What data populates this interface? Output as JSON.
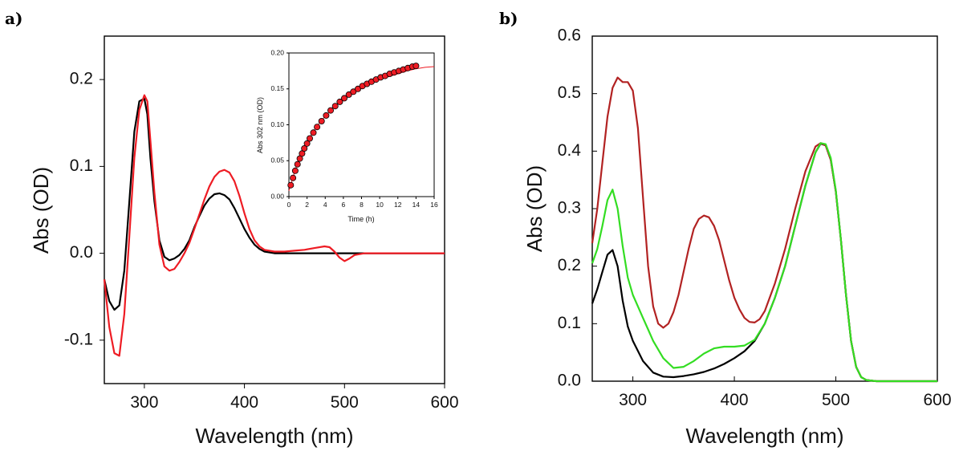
{
  "panels": {
    "a": {
      "label": "a)"
    },
    "b": {
      "label": "b)"
    }
  },
  "colors": {
    "black": "#000000",
    "red": "#ee1c24",
    "darkred": "#b22222",
    "green": "#33dd22"
  },
  "chart_data": [
    {
      "id": "a",
      "type": "line",
      "xlabel": "Wavelength (nm)",
      "ylabel": "Abs (OD)",
      "xlim": [
        260,
        600
      ],
      "ylim": [
        -0.15,
        0.25
      ],
      "xticks": [
        300,
        400,
        500,
        600
      ],
      "yticks": [
        -0.1,
        0.0,
        0.1,
        0.2
      ],
      "xtick_labels": [
        "300",
        "400",
        "500",
        "600"
      ],
      "ytick_labels": [
        "-0.1",
        "0.0",
        "0.1",
        "0.2"
      ],
      "grid": false,
      "series": [
        {
          "color": "black",
          "x": [
            260,
            265,
            270,
            275,
            280,
            285,
            290,
            295,
            300,
            303,
            306,
            310,
            315,
            320,
            325,
            330,
            335,
            340,
            345,
            350,
            355,
            360,
            365,
            370,
            375,
            380,
            385,
            390,
            395,
            400,
            405,
            410,
            415,
            420,
            430,
            440,
            460,
            480,
            500,
            520,
            560,
            600
          ],
          "y": [
            -0.03,
            -0.055,
            -0.065,
            -0.06,
            -0.02,
            0.06,
            0.14,
            0.175,
            0.178,
            0.16,
            0.11,
            0.06,
            0.015,
            -0.004,
            -0.008,
            -0.006,
            -0.002,
            0.005,
            0.015,
            0.03,
            0.043,
            0.055,
            0.063,
            0.068,
            0.069,
            0.067,
            0.062,
            0.052,
            0.04,
            0.028,
            0.018,
            0.01,
            0.005,
            0.002,
            0.0,
            0.0,
            0.0,
            0.0,
            0.0,
            0.0,
            0.0,
            0.0
          ]
        },
        {
          "color": "red",
          "x": [
            260,
            265,
            270,
            275,
            280,
            285,
            290,
            295,
            300,
            303,
            306,
            310,
            315,
            320,
            325,
            330,
            335,
            340,
            345,
            350,
            355,
            360,
            365,
            370,
            375,
            380,
            385,
            390,
            395,
            400,
            405,
            410,
            415,
            420,
            430,
            440,
            450,
            460,
            470,
            480,
            485,
            490,
            495,
            500,
            505,
            510,
            520,
            560,
            600
          ],
          "y": [
            -0.03,
            -0.085,
            -0.115,
            -0.118,
            -0.07,
            0.02,
            0.11,
            0.165,
            0.182,
            0.175,
            0.13,
            0.07,
            0.01,
            -0.015,
            -0.02,
            -0.018,
            -0.01,
            0.0,
            0.012,
            0.028,
            0.045,
            0.062,
            0.077,
            0.088,
            0.094,
            0.096,
            0.093,
            0.083,
            0.066,
            0.046,
            0.028,
            0.015,
            0.008,
            0.004,
            0.002,
            0.002,
            0.003,
            0.004,
            0.006,
            0.008,
            0.007,
            0.002,
            -0.005,
            -0.009,
            -0.006,
            -0.002,
            0.0,
            0.0,
            0.0
          ]
        }
      ],
      "inset": {
        "type": "scatter",
        "xlabel": "Time (h)",
        "ylabel": "Abs 302 nm (OD)",
        "xlim": [
          0,
          16
        ],
        "ylim": [
          0,
          0.2
        ],
        "xticks": [
          0,
          2,
          4,
          6,
          8,
          10,
          12,
          14,
          16
        ],
        "yticks": [
          0.0,
          0.05,
          0.1,
          0.15,
          0.2
        ],
        "xtick_labels": [
          "0",
          "2",
          "4",
          "6",
          "8",
          "10",
          "12",
          "14",
          "16"
        ],
        "ytick_labels": [
          "0.00",
          "0.05",
          "0.10",
          "0.15",
          "0.20"
        ],
        "points": {
          "x": [
            0.2,
            0.45,
            0.7,
            0.95,
            1.2,
            1.45,
            1.7,
            2.0,
            2.3,
            2.7,
            3.1,
            3.6,
            4.1,
            4.6,
            5.1,
            5.6,
            6.1,
            6.6,
            7.1,
            7.6,
            8.1,
            8.6,
            9.1,
            9.6,
            10.1,
            10.6,
            11.1,
            11.6,
            12.1,
            12.6,
            13.1,
            13.6,
            14.0
          ],
          "y": [
            0.016,
            0.026,
            0.036,
            0.045,
            0.053,
            0.06,
            0.067,
            0.074,
            0.081,
            0.089,
            0.097,
            0.105,
            0.113,
            0.12,
            0.126,
            0.132,
            0.137,
            0.142,
            0.146,
            0.15,
            0.154,
            0.157,
            0.16,
            0.163,
            0.166,
            0.168,
            0.171,
            0.173,
            0.175,
            0.177,
            0.179,
            0.181,
            0.182
          ]
        },
        "fit": {
          "x": [
            0,
            1,
            2,
            3,
            4,
            5,
            6,
            7,
            8,
            9,
            10,
            11,
            12,
            13,
            14,
            15,
            16
          ],
          "y": [
            0.008,
            0.05,
            0.076,
            0.097,
            0.112,
            0.125,
            0.135,
            0.144,
            0.151,
            0.157,
            0.163,
            0.167,
            0.171,
            0.175,
            0.178,
            0.18,
            0.181
          ]
        }
      }
    },
    {
      "id": "b",
      "type": "line",
      "xlabel": "Wavelength (nm)",
      "ylabel": "Abs (OD)",
      "xlim": [
        260,
        600
      ],
      "ylim": [
        0,
        0.6
      ],
      "xticks": [
        300,
        400,
        500,
        600
      ],
      "yticks": [
        0.0,
        0.1,
        0.2,
        0.3,
        0.4,
        0.5,
        0.6
      ],
      "xtick_labels": [
        "300",
        "400",
        "500",
        "600"
      ],
      "ytick_labels": [
        "0.0",
        "0.1",
        "0.2",
        "0.3",
        "0.4",
        "0.5",
        "0.6"
      ],
      "grid": false,
      "series": [
        {
          "color": "black",
          "x": [
            260,
            265,
            270,
            275,
            280,
            285,
            290,
            295,
            300,
            310,
            320,
            330,
            340,
            350,
            360,
            370,
            380,
            390,
            400,
            410,
            420,
            430,
            440,
            450,
            460,
            470,
            480,
            485,
            490,
            495,
            500,
            505,
            510,
            515,
            520,
            525,
            530,
            540,
            560,
            580,
            600
          ],
          "y": [
            0.135,
            0.16,
            0.19,
            0.22,
            0.228,
            0.2,
            0.14,
            0.095,
            0.07,
            0.035,
            0.015,
            0.008,
            0.007,
            0.009,
            0.012,
            0.016,
            0.022,
            0.03,
            0.04,
            0.052,
            0.07,
            0.1,
            0.145,
            0.2,
            0.27,
            0.34,
            0.398,
            0.413,
            0.41,
            0.385,
            0.33,
            0.245,
            0.15,
            0.07,
            0.025,
            0.007,
            0.002,
            0.0,
            0.0,
            0.0,
            0.0
          ]
        },
        {
          "color": "darkred",
          "x": [
            260,
            265,
            270,
            275,
            280,
            285,
            290,
            295,
            300,
            305,
            310,
            315,
            320,
            325,
            330,
            335,
            340,
            345,
            350,
            355,
            360,
            365,
            370,
            375,
            380,
            385,
            390,
            395,
            400,
            405,
            410,
            415,
            420,
            425,
            430,
            440,
            450,
            460,
            470,
            480,
            485,
            490,
            495,
            500,
            505,
            510,
            515,
            520,
            525,
            530,
            540,
            560,
            580,
            600
          ],
          "y": [
            0.24,
            0.3,
            0.38,
            0.46,
            0.51,
            0.528,
            0.52,
            0.52,
            0.505,
            0.44,
            0.32,
            0.2,
            0.13,
            0.1,
            0.093,
            0.1,
            0.12,
            0.15,
            0.19,
            0.23,
            0.265,
            0.282,
            0.288,
            0.285,
            0.27,
            0.245,
            0.21,
            0.175,
            0.145,
            0.125,
            0.11,
            0.103,
            0.102,
            0.108,
            0.122,
            0.17,
            0.23,
            0.3,
            0.365,
            0.408,
            0.414,
            0.41,
            0.385,
            0.33,
            0.245,
            0.15,
            0.07,
            0.025,
            0.007,
            0.002,
            0.0,
            0.0,
            0.0,
            0.0
          ]
        },
        {
          "color": "green",
          "x": [
            260,
            265,
            270,
            275,
            280,
            285,
            290,
            295,
            300,
            305,
            310,
            315,
            320,
            330,
            340,
            350,
            360,
            370,
            380,
            390,
            400,
            410,
            420,
            430,
            440,
            450,
            460,
            470,
            480,
            485,
            490,
            495,
            500,
            505,
            510,
            515,
            520,
            525,
            530,
            540,
            560,
            580,
            600
          ],
          "y": [
            0.205,
            0.23,
            0.27,
            0.315,
            0.333,
            0.3,
            0.235,
            0.18,
            0.15,
            0.13,
            0.11,
            0.09,
            0.07,
            0.04,
            0.023,
            0.025,
            0.035,
            0.048,
            0.057,
            0.06,
            0.06,
            0.062,
            0.072,
            0.1,
            0.145,
            0.2,
            0.27,
            0.34,
            0.398,
            0.414,
            0.412,
            0.388,
            0.332,
            0.245,
            0.15,
            0.07,
            0.025,
            0.007,
            0.002,
            0.0,
            0.0,
            0.0,
            0.0
          ]
        }
      ]
    }
  ]
}
